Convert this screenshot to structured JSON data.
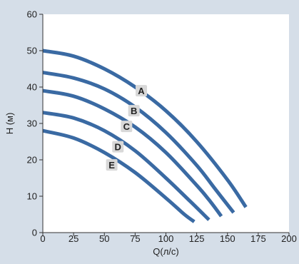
{
  "chart_data": {
    "type": "line",
    "title": "",
    "xlabel": "Q(л/с)",
    "ylabel": "H (м)",
    "xlim": [
      0,
      200
    ],
    "ylim": [
      0,
      60
    ],
    "x_ticks": [
      0,
      25,
      50,
      75,
      100,
      125,
      150,
      175,
      200
    ],
    "y_ticks": [
      0,
      10,
      20,
      30,
      40,
      50,
      60
    ],
    "grid": false,
    "legend": "none",
    "colors": {
      "background": "#d5dee8",
      "plot_area": "#ffffff",
      "series": "#3a6aa3",
      "label_box": "#d8d8d8",
      "axis": "#333333"
    },
    "series": [
      {
        "name": "A",
        "x": [
          0,
          25,
          50,
          75,
          100,
          125,
          150,
          165
        ],
        "y": [
          50,
          48.5,
          45,
          40,
          33.5,
          25,
          14.5,
          7
        ]
      },
      {
        "name": "B",
        "x": [
          0,
          25,
          50,
          75,
          100,
          125,
          140,
          155
        ],
        "y": [
          44,
          42.5,
          39.5,
          34.5,
          27.5,
          18.5,
          12,
          5.5
        ]
      },
      {
        "name": "C",
        "x": [
          0,
          25,
          50,
          75,
          100,
          125,
          135,
          145
        ],
        "y": [
          39,
          37.5,
          34,
          29,
          22,
          13,
          9,
          4.5
        ]
      },
      {
        "name": "D",
        "x": [
          0,
          25,
          50,
          75,
          100,
          120,
          135
        ],
        "y": [
          33,
          31.5,
          28,
          22.5,
          15,
          8.5,
          3.5
        ]
      },
      {
        "name": "E",
        "x": [
          0,
          25,
          50,
          75,
          100,
          115,
          123
        ],
        "y": [
          28,
          26,
          22,
          16.5,
          9.5,
          5,
          3
        ]
      }
    ],
    "labels": [
      {
        "text": "A",
        "x": 80,
        "y": 39
      },
      {
        "text": "B",
        "x": 74,
        "y": 33.5
      },
      {
        "text": "C",
        "x": 68,
        "y": 29.2
      },
      {
        "text": "D",
        "x": 61,
        "y": 23.6
      },
      {
        "text": "E",
        "x": 56,
        "y": 18.6
      }
    ]
  }
}
